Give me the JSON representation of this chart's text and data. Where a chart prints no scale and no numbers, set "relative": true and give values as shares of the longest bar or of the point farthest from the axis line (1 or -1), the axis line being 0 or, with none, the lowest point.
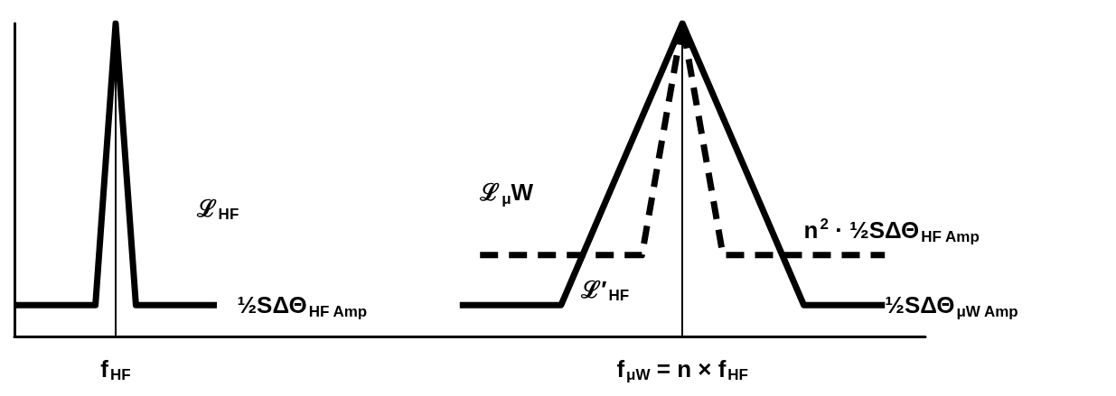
{
  "chart_data": {
    "type": "line",
    "relative": true,
    "categories": [
      null,
      null,
      null,
      null,
      null,
      "f$_{HF}$",
      null,
      null,
      null,
      null,
      null,
      null,
      null,
      null,
      null,
      null,
      null,
      null,
      null,
      null,
      null,
      null,
      null,
      null,
      null,
      null,
      null,
      null,
      null,
      null,
      null,
      null,
      null,
      "f$_{μW}$ = n × f$_{HF}$",
      null,
      null,
      null,
      null,
      null,
      null,
      null,
      null,
      null,
      null,
      null,
      null
    ],
    "tick_labels": "x",
    "grid": false,
    "marker": "none",
    "series": [
      {
        "color": "#000000",
        "line_style": "solid",
        "values": [
          0.1,
          0.1,
          0.1,
          0.1,
          0.1,
          1,
          0.1,
          0.1,
          0.1,
          0.1,
          0.1,
          null,
          null,
          null,
          null,
          null,
          null,
          null,
          null,
          null,
          null,
          null,
          null,
          null,
          null,
          null,
          null,
          null,
          null,
          null,
          null,
          null,
          null,
          null,
          null,
          null,
          null,
          null,
          null,
          null,
          null,
          null,
          null,
          null,
          null,
          null
        ]
      },
      {
        "color": "#000000",
        "line_style": "solid",
        "values": [
          null,
          null,
          null,
          null,
          null,
          null,
          null,
          null,
          null,
          null,
          null,
          null,
          null,
          null,
          null,
          null,
          null,
          null,
          null,
          null,
          null,
          null,
          0.1,
          0.1,
          0.1,
          0.1,
          0.1,
          0.1,
          0.25,
          0.4,
          0.55,
          0.7,
          0.85,
          1,
          0.85,
          0.7,
          0.55,
          0.4,
          0.25,
          0.1,
          0.1,
          0.1,
          0.1,
          0.1,
          null,
          null
        ]
      },
      {
        "color": "#000000",
        "line_style": "dashed",
        "values": [
          null,
          null,
          null,
          null,
          null,
          null,
          null,
          null,
          null,
          null,
          null,
          null,
          null,
          null,
          null,
          null,
          null,
          null,
          null,
          null,
          null,
          null,
          null,
          0.26,
          0.26,
          0.26,
          0.26,
          0.26,
          0.26,
          0.26,
          0.26,
          0.26,
          0.63,
          1,
          0.63,
          0.26,
          0.26,
          0.26,
          0.26,
          0.26,
          0.26,
          0.26,
          0.26,
          0.26,
          null,
          null
        ]
      }
    ],
    "ref_lines": [
      {
        "axis": "x",
        "value": "f$_{HF}$"
      },
      {
        "axis": "x",
        "value": "f$_{μW}$ = n × f$_{HF}$"
      }
    ],
    "annotations": [
      "ℒ$_{HF}$",
      "½SΔΘ$_{HF Amp}$",
      "ℒ$_{μ}$W",
      "ℒ′$_{HF}$",
      "n$^{2}$ · ½SΔΘ$_{HF Amp}$",
      "½SΔΘ$_{μW Amp}$"
    ]
  }
}
